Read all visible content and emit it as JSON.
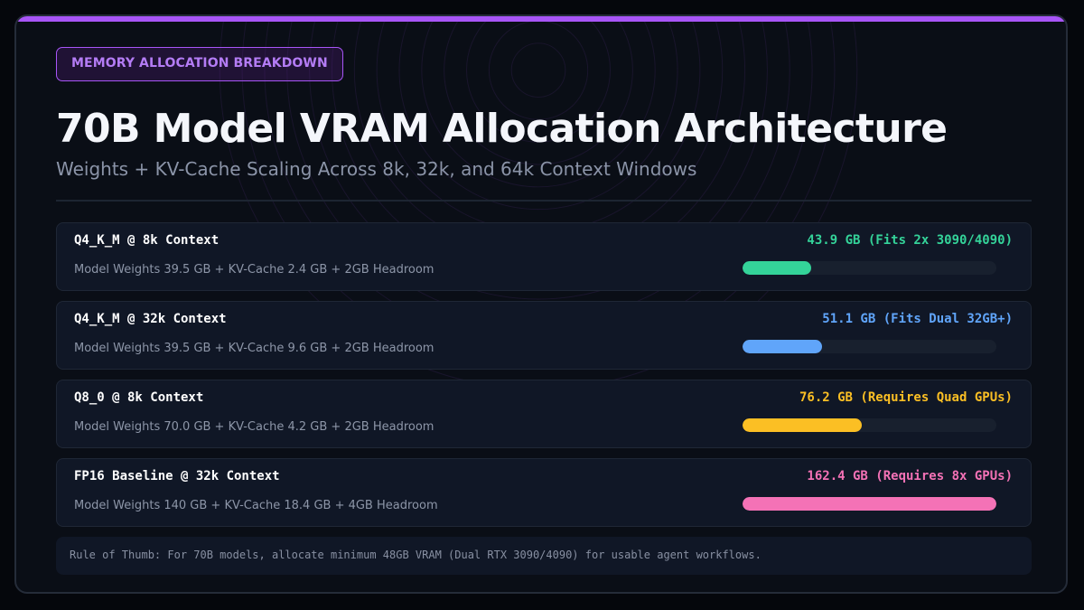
{
  "badge": "MEMORY ALLOCATION BREAKDOWN",
  "title": "70B Model VRAM Allocation Architecture",
  "subtitle": "Weights + KV-Cache Scaling Across 8k, 32k, and 64k Context Windows",
  "note": "Rule of Thumb: For 70B models, allocate minimum 48GB VRAM (Dual RTX 3090/4090) for usable agent workflows.",
  "colors": {
    "accent": "#a855f7",
    "q4_8k": "#34d399",
    "q4_32k": "#60a5fa",
    "q8_8k": "#fbbf24",
    "fp16_32k": "#f472b6"
  },
  "chart_data": {
    "type": "bar",
    "orientation": "horizontal",
    "unit": "GB",
    "scale_max_gb": 162.4,
    "categories": [
      "Q4_K_M @ 8k Context",
      "Q4_K_M @ 32k Context",
      "Q8_0 @ 8k Context",
      "FP16 Baseline @ 32k Context"
    ],
    "values": [
      43.9,
      51.1,
      76.2,
      162.4
    ],
    "rows": [
      {
        "label": "Q4_K_M @ 8k Context",
        "detail": "Model Weights 39.5 GB + KV-Cache 2.4 GB + 2GB Headroom",
        "value_label": "43.9 GB (Fits 2x 3090/4090)",
        "total_gb": 43.9,
        "weights_gb": 39.5,
        "kv_cache_gb": 2.4,
        "headroom_gb": 2,
        "color": "#34d399"
      },
      {
        "label": "Q4_K_M @ 32k Context",
        "detail": "Model Weights 39.5 GB + KV-Cache 9.6 GB + 2GB Headroom",
        "value_label": "51.1 GB (Fits Dual 32GB+)",
        "total_gb": 51.1,
        "weights_gb": 39.5,
        "kv_cache_gb": 9.6,
        "headroom_gb": 2,
        "color": "#60a5fa"
      },
      {
        "label": "Q8_0 @ 8k Context",
        "detail": "Model Weights 70.0 GB + KV-Cache 4.2 GB + 2GB Headroom",
        "value_label": "76.2 GB (Requires Quad GPUs)",
        "total_gb": 76.2,
        "weights_gb": 70.0,
        "kv_cache_gb": 4.2,
        "headroom_gb": 2,
        "color": "#fbbf24"
      },
      {
        "label": "FP16 Baseline @ 32k Context",
        "detail": "Model Weights 140 GB + KV-Cache 18.4 GB + 4GB Headroom",
        "value_label": "162.4 GB (Requires 8x GPUs)",
        "total_gb": 162.4,
        "weights_gb": 140,
        "kv_cache_gb": 18.4,
        "headroom_gb": 4,
        "color": "#f472b6"
      }
    ]
  }
}
